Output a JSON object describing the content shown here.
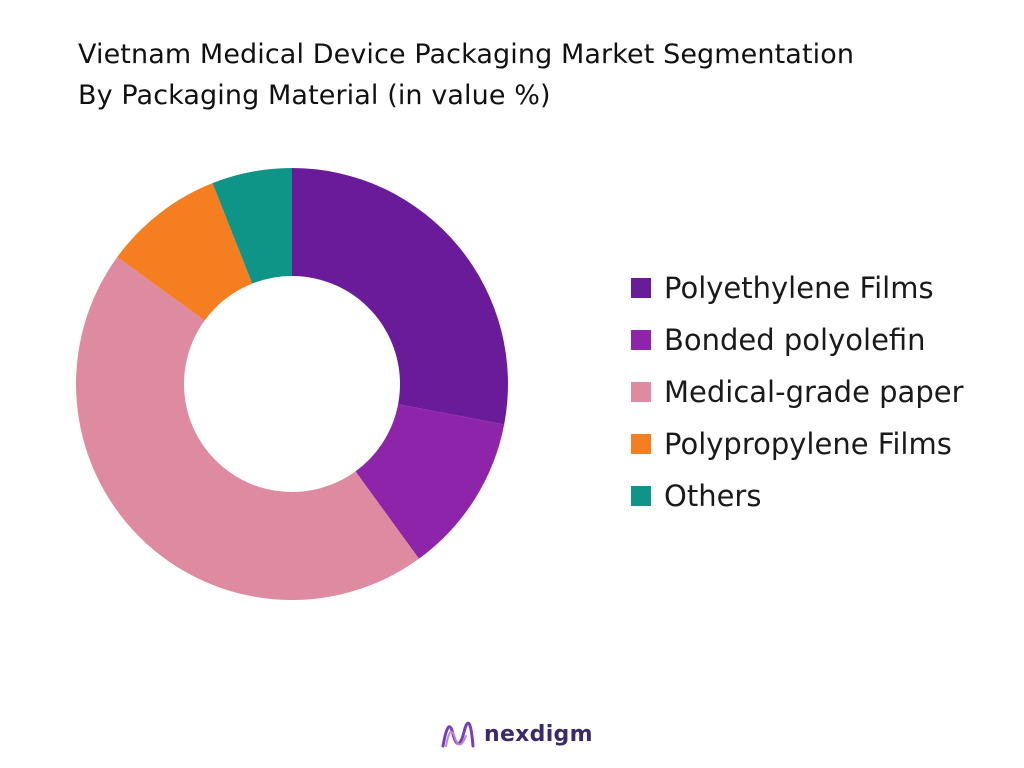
{
  "chart_data": {
    "type": "pie",
    "variant": "donut",
    "title": "Vietnam Medical Device Packaging Market Segmentation By Packaging Material (in value %)",
    "title_lines": [
      "Vietnam Medical Device Packaging Market Segmentation",
      "By Packaging Material (in value %)"
    ],
    "categories": [
      "Polyethylene Films",
      "Bonded polyolefin",
      "Medical-grade paper",
      "Polypropylene Films",
      "Others"
    ],
    "values": [
      28,
      12,
      45,
      9,
      6
    ],
    "colors": [
      "#6a1b9a",
      "#8e24aa",
      "#de8aa0",
      "#f57f20",
      "#0f9488"
    ],
    "legend_position": "right"
  },
  "branding": {
    "logo_text": "nexdigm",
    "logo_color": "#3b2a6b"
  }
}
